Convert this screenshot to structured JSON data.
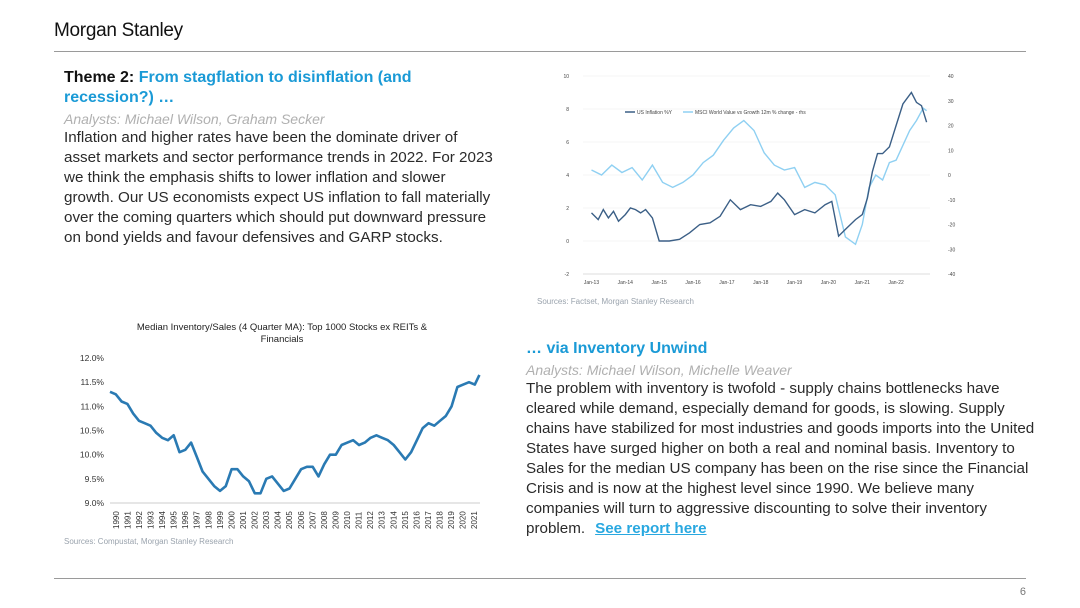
{
  "header": {
    "logo": "Morgan Stanley"
  },
  "theme": {
    "title_lead": "Theme 2: ",
    "title_accent": "From stagflation to disinflation (and recession?) …",
    "analysts": "Analysts: Michael Wilson, Graham Secker",
    "body": "Inflation and higher rates have been the dominate driver of asset markets and sector performance trends in 2022. For 2023 we think the emphasis shifts to lower inflation and slower growth.  Our US economists expect US inflation to fall materially over the coming quarters which should put downward pressure on bond yields and favour defensives and GARP stocks."
  },
  "inventory": {
    "title": "… via Inventory Unwind",
    "analysts": "Analysts: Michael Wilson, Michelle Weaver",
    "body": "The problem with inventory is twofold - supply chains bottlenecks have cleared while demand, especially demand for goods, is slowing. Supply chains have stabilized for most industries and goods imports into the United States have surged higher on both a real and nominal basis. Inventory to Sales for the median US company has been on the rise since the Financial Crisis and is now at the highest level since 1990. We believe many companies will turn to aggressive discounting to solve their inventory problem.",
    "link": "See report here"
  },
  "sources": {
    "top_chart": "Sources: Factset, Morgan Stanley Research",
    "bottom_chart": "Sources: Compustat, Morgan Stanley Research"
  },
  "footer": {
    "page": "6"
  },
  "colors": {
    "accent": "#1a9ad6",
    "dark_series": "#3b5f86",
    "light_series": "#8fd0f2",
    "inv_line": "#2a7ab3"
  },
  "chart_data": [
    {
      "type": "line",
      "title": "",
      "x_ticks": [
        "Jan-13",
        "Jan-14",
        "Jan-15",
        "Jan-16",
        "Jan-17",
        "Jan-18",
        "Jan-19",
        "Jan-20",
        "Jan-21",
        "Jan-22"
      ],
      "y_left_ticks": [
        "10",
        "8",
        "6",
        "4",
        "2",
        "0",
        "-2"
      ],
      "y_right_ticks": [
        "40",
        "30",
        "20",
        "10",
        "0",
        "-10",
        "-20",
        "-30",
        "-40"
      ],
      "ylim_left": [
        -2,
        10
      ],
      "ylim_right": [
        -40,
        40
      ],
      "legend_position": "top-left",
      "series": [
        {
          "name": "US Inflation %Y",
          "axis": "left",
          "x": [
            2013.0,
            2013.2,
            2013.35,
            2013.5,
            2013.65,
            2013.8,
            2014.0,
            2014.15,
            2014.3,
            2014.45,
            2014.6,
            2014.8,
            2015.0,
            2015.3,
            2015.6,
            2015.9,
            2016.2,
            2016.5,
            2016.8,
            2017.1,
            2017.4,
            2017.7,
            2018.0,
            2018.3,
            2018.5,
            2018.7,
            2019.0,
            2019.3,
            2019.6,
            2019.9,
            2020.1,
            2020.3,
            2020.5,
            2020.8,
            2021.0,
            2021.15,
            2021.3,
            2021.45,
            2021.6,
            2021.8,
            2022.0,
            2022.2,
            2022.45,
            2022.6,
            2022.75,
            2022.9
          ],
          "values": [
            1.7,
            1.3,
            1.9,
            1.4,
            1.8,
            1.2,
            1.6,
            2.0,
            1.9,
            1.7,
            1.9,
            1.4,
            0.0,
            0.0,
            0.1,
            0.5,
            1.0,
            1.1,
            1.5,
            2.5,
            1.9,
            2.2,
            2.1,
            2.4,
            2.9,
            2.5,
            1.6,
            1.9,
            1.7,
            2.2,
            2.4,
            0.3,
            0.7,
            1.3,
            1.6,
            2.6,
            4.2,
            5.3,
            5.3,
            5.7,
            7.0,
            8.3,
            9.0,
            8.4,
            8.2,
            7.2
          ]
        },
        {
          "name": "MSCI World Value vs Growth 12m % change - rhs",
          "axis": "right",
          "x": [
            2013.0,
            2013.3,
            2013.6,
            2013.9,
            2014.2,
            2014.5,
            2014.8,
            2015.1,
            2015.4,
            2015.7,
            2016.0,
            2016.3,
            2016.6,
            2016.9,
            2017.2,
            2017.5,
            2017.8,
            2018.1,
            2018.4,
            2018.7,
            2019.0,
            2019.3,
            2019.6,
            2019.9,
            2020.2,
            2020.5,
            2020.8,
            2021.0,
            2021.2,
            2021.4,
            2021.6,
            2021.8,
            2022.0,
            2022.2,
            2022.4,
            2022.6,
            2022.8,
            2022.9
          ],
          "values": [
            2,
            0,
            4,
            1,
            3,
            -2,
            4,
            -3,
            -5,
            -3,
            0,
            5,
            8,
            14,
            19,
            22,
            18,
            9,
            4,
            2,
            3,
            -5,
            -3,
            -4,
            -8,
            -25,
            -28,
            -20,
            -5,
            0,
            -2,
            5,
            6,
            12,
            18,
            22,
            27,
            26
          ]
        }
      ]
    },
    {
      "type": "line",
      "title": "Median Inventory/Sales (4 Quarter MA): Top 1000 Stocks ex REITs & Financials",
      "xlabel": "",
      "ylabel": "",
      "categories": [
        "1990",
        "1991",
        "1992",
        "1993",
        "1994",
        "1995",
        "1996",
        "1997",
        "1998",
        "1999",
        "2000",
        "2001",
        "2002",
        "2003",
        "2004",
        "2005",
        "2006",
        "2007",
        "2008",
        "2009",
        "2010",
        "2011",
        "2012",
        "2013",
        "2014",
        "2015",
        "2016",
        "2017",
        "2018",
        "2019",
        "2020",
        "2021"
      ],
      "y_ticks": [
        "12.0%",
        "11.5%",
        "11.0%",
        "10.5%",
        "10.0%",
        "9.5%",
        "9.0%"
      ],
      "ylim": [
        9.0,
        12.0
      ],
      "grid": false,
      "series": [
        {
          "name": "",
          "x": [
            1990.0,
            1990.5,
            1991.0,
            1991.5,
            1992.0,
            1992.5,
            1993.0,
            1993.5,
            1994.0,
            1994.5,
            1995.0,
            1995.5,
            1996.0,
            1996.5,
            1997.0,
            1997.5,
            1998.0,
            1998.5,
            1999.0,
            1999.5,
            2000.0,
            2000.5,
            2001.0,
            2001.5,
            2002.0,
            2002.5,
            2003.0,
            2003.5,
            2004.0,
            2004.5,
            2005.0,
            2005.5,
            2006.0,
            2006.5,
            2007.0,
            2007.5,
            2008.0,
            2008.5,
            2009.0,
            2009.5,
            2010.0,
            2010.5,
            2011.0,
            2011.5,
            2012.0,
            2012.5,
            2013.0,
            2013.5,
            2014.0,
            2014.5,
            2015.0,
            2015.5,
            2016.0,
            2016.5,
            2017.0,
            2017.5,
            2018.0,
            2018.5,
            2019.0,
            2019.5,
            2020.0,
            2020.5,
            2021.0,
            2021.5,
            2021.9
          ],
          "values": [
            11.3,
            11.25,
            11.1,
            11.05,
            10.85,
            10.7,
            10.65,
            10.6,
            10.45,
            10.35,
            10.3,
            10.4,
            10.05,
            10.1,
            10.25,
            9.95,
            9.65,
            9.5,
            9.35,
            9.25,
            9.35,
            9.7,
            9.7,
            9.55,
            9.45,
            9.2,
            9.2,
            9.5,
            9.55,
            9.4,
            9.25,
            9.3,
            9.5,
            9.7,
            9.75,
            9.75,
            9.55,
            9.8,
            10.0,
            10.0,
            10.2,
            10.25,
            10.3,
            10.2,
            10.25,
            10.35,
            10.4,
            10.35,
            10.3,
            10.2,
            10.05,
            9.9,
            10.05,
            10.3,
            10.55,
            10.65,
            10.6,
            10.7,
            10.8,
            11.0,
            11.4,
            11.45,
            11.5,
            11.45,
            11.65
          ]
        }
      ]
    }
  ]
}
